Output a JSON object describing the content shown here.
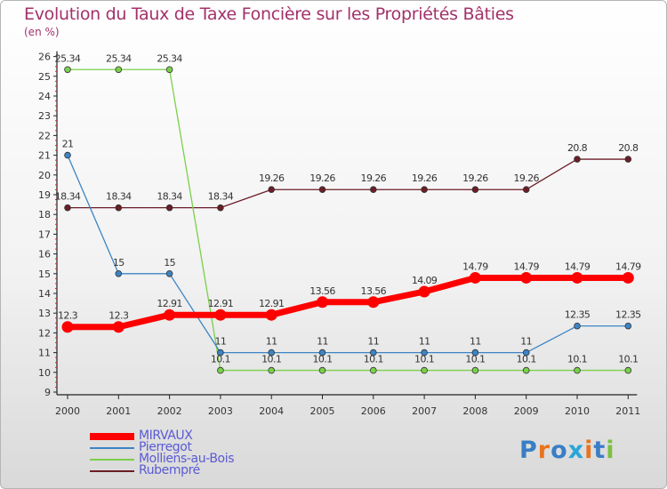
{
  "page": {
    "title": "Evolution du Taux de Taxe Foncière sur les Propriétés Bâties",
    "unit": "(en %)"
  },
  "chart_data": {
    "type": "line",
    "title": "Evolution du Taux de Taxe Foncière sur les Propriétés Bâties",
    "ylabel": "(en %)",
    "xlabel": "",
    "ylim": [
      9,
      26
    ],
    "yticks": [
      "9",
      "10",
      "11",
      "12",
      "13",
      "14",
      "15",
      "16",
      "17",
      "18",
      "19",
      "20",
      "21",
      "22",
      "23",
      "24",
      "25",
      "26"
    ],
    "categories": [
      "2000",
      "2001",
      "2002",
      "2003",
      "2004",
      "2005",
      "2006",
      "2007",
      "2008",
      "2009",
      "2010",
      "2011"
    ],
    "series": [
      {
        "name": "MIRVAUX",
        "color": "#ff0000",
        "values": [
          12.3,
          12.3,
          12.91,
          12.91,
          12.91,
          13.56,
          13.56,
          14.09,
          14.79,
          14.79,
          14.79,
          14.79
        ],
        "labels": [
          "12.3",
          "12.3",
          "12.91",
          "12.91",
          "12.91",
          "13.56",
          "13.56",
          "14.09",
          "14.79",
          "14.79",
          "14.79",
          "14.79"
        ]
      },
      {
        "name": "Pierregot",
        "color": "#3c84c4",
        "values": [
          21,
          15,
          15,
          11,
          11,
          11,
          11,
          11,
          11,
          11,
          12.35,
          12.35
        ],
        "labels": [
          "21",
          "15",
          "15",
          "11",
          "11",
          "11",
          "11",
          "11",
          "11",
          "11",
          "12.35",
          "12.35"
        ]
      },
      {
        "name": "Molliens-au-Bois",
        "color": "#7ad04a",
        "values": [
          25.34,
          25.34,
          25.34,
          10.1,
          10.1,
          10.1,
          10.1,
          10.1,
          10.1,
          10.1,
          10.1,
          10.1
        ],
        "labels": [
          "25.34",
          "25.34",
          "25.34",
          "10.1",
          "10.1",
          "10.1",
          "10.1",
          "10.1",
          "10.1",
          "10.1",
          "10.1",
          "10.1"
        ]
      },
      {
        "name": "Rubempré",
        "color": "#6b1d26",
        "values": [
          18.34,
          18.34,
          18.34,
          18.34,
          19.26,
          19.26,
          19.26,
          19.26,
          19.26,
          19.26,
          20.8,
          20.8
        ],
        "labels": [
          "18.34",
          "18.34",
          "18.34",
          "18.34",
          "19.26",
          "19.26",
          "19.26",
          "19.26",
          "19.26",
          "19.26",
          "20.8",
          "20.8"
        ]
      }
    ]
  },
  "logo": {
    "letters": [
      "P",
      "r",
      "o",
      "x",
      "i",
      "t",
      "i"
    ],
    "colors": [
      "#3a7ec6",
      "#e8741e",
      "#3a7ec6",
      "#2aa6d8",
      "#e8741e",
      "#3a7ec6",
      "#7ac142"
    ]
  }
}
